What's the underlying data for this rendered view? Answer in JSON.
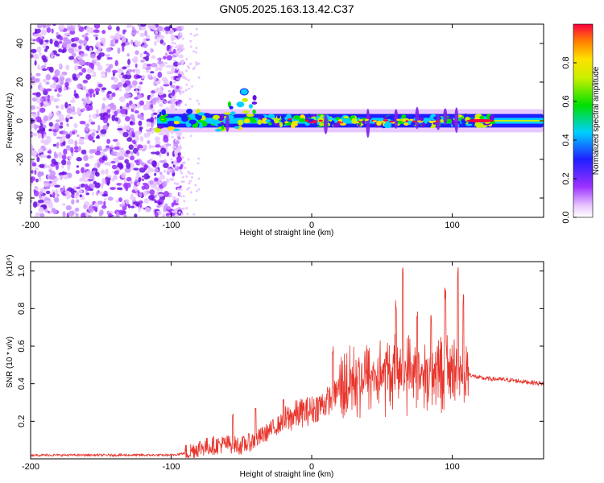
{
  "title": "GN05.2025.163.13.42.C37",
  "colors": {
    "snr_line": "#e8352c",
    "background": "#ffffff",
    "axis": "#000000"
  },
  "chart_data": [
    {
      "type": "heatmap",
      "xlabel": "Height of straight line (km)",
      "ylabel": "Frequency (Hz)",
      "xlim": [
        -200,
        165
      ],
      "ylim": [
        -50,
        50
      ],
      "xticks": [
        -200,
        -100,
        0,
        100
      ],
      "yticks": [
        -40,
        -20,
        0,
        20,
        40
      ],
      "colorbar": {
        "label": "Normalized spectral amplitude",
        "range": [
          0,
          1
        ],
        "ticks": [
          "0.0",
          "0.2",
          "0.4",
          "0.6",
          "0.8"
        ],
        "colormap": "rainbow (white-violet-blue-cyan-green-yellow-orange-red)"
      },
      "features": {
        "noise_region_x": [
          -200,
          -100
        ],
        "signal_band_x": [
          -110,
          165
        ],
        "signal_band_center_freq": 0,
        "peak_amplitude_region_x": [
          110,
          130
        ]
      }
    },
    {
      "type": "line",
      "xlabel": "Height of straight line (km)",
      "ylabel": "SNR (10 * v/v)",
      "y_scale_note": "(x10⁴)",
      "xlim": [
        -200,
        165
      ],
      "ylim": [
        0,
        1.05
      ],
      "xticks": [
        -200,
        -100,
        0,
        100
      ],
      "yticks": [
        "0.2",
        "0.4",
        "0.6",
        "0.8",
        "1.0"
      ],
      "series": [
        {
          "x": [
            -200,
            -180,
            -160,
            -140,
            -120,
            -100,
            -90,
            -80,
            -70,
            -60,
            -50,
            -40,
            -30,
            -20,
            -10,
            0,
            10,
            15,
            20,
            30,
            40,
            50,
            60,
            70,
            80,
            90,
            100,
            110,
            115,
            120,
            140,
            165
          ],
          "values": [
            0.02,
            0.02,
            0.02,
            0.02,
            0.02,
            0.02,
            0.03,
            0.06,
            0.07,
            0.08,
            0.07,
            0.1,
            0.15,
            0.2,
            0.24,
            0.26,
            0.3,
            0.33,
            0.38,
            0.42,
            0.44,
            0.45,
            0.46,
            0.47,
            0.46,
            0.47,
            0.46,
            0.46,
            0.44,
            0.43,
            0.42,
            0.4
          ],
          "spikes": [
            [
              -56,
              0.24
            ],
            [
              -40,
              0.28
            ],
            [
              -20,
              0.32
            ],
            [
              15,
              0.6
            ],
            [
              60,
              0.85
            ],
            [
              65,
              1.04
            ],
            [
              75,
              0.8
            ],
            [
              85,
              0.78
            ],
            [
              95,
              0.92
            ],
            [
              104,
              1.04
            ],
            [
              108,
              0.88
            ]
          ]
        }
      ]
    }
  ]
}
